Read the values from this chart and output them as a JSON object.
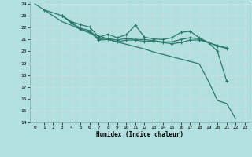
{
  "xlabel": "Humidex (Indice chaleur)",
  "bg_color": "#b2e0e0",
  "grid_color": "#d0e8e8",
  "line_color": "#2a7a6a",
  "xlim": [
    -0.5,
    23.5
  ],
  "ylim": [
    14,
    24.2
  ],
  "xticks": [
    0,
    1,
    2,
    3,
    4,
    5,
    6,
    7,
    8,
    9,
    10,
    11,
    12,
    13,
    14,
    15,
    16,
    17,
    18,
    19,
    20,
    21,
    22,
    23
  ],
  "yticks": [
    14,
    15,
    16,
    17,
    18,
    19,
    20,
    21,
    22,
    23,
    24
  ],
  "s1_x": [
    0,
    1,
    2,
    3,
    4,
    5,
    6,
    7,
    8,
    9,
    10,
    11,
    12,
    13,
    14,
    15,
    16,
    17,
    18,
    19,
    20,
    21,
    22
  ],
  "s1_y": [
    24.0,
    23.5,
    23.0,
    22.5,
    22.2,
    21.85,
    21.55,
    21.3,
    21.05,
    20.8,
    20.6,
    20.4,
    20.2,
    19.95,
    19.75,
    19.55,
    19.35,
    19.15,
    18.95,
    17.5,
    15.85,
    15.6,
    14.3
  ],
  "s2_x": [
    1,
    3,
    4,
    5,
    6,
    7,
    8,
    9,
    10,
    11,
    12,
    13,
    14,
    15,
    16,
    17,
    18,
    19,
    20,
    21
  ],
  "s2_y": [
    23.5,
    23.0,
    22.5,
    22.25,
    22.05,
    21.2,
    21.45,
    21.15,
    21.4,
    22.2,
    21.2,
    21.05,
    21.0,
    21.15,
    21.6,
    21.7,
    21.15,
    20.75,
    20.0,
    17.5
  ],
  "s3_x": [
    3,
    4,
    5,
    6,
    7,
    8,
    9,
    10,
    11,
    12,
    13,
    14,
    15,
    16,
    17,
    18,
    19,
    20,
    21
  ],
  "s3_y": [
    23.0,
    22.4,
    21.95,
    21.75,
    21.05,
    21.1,
    20.95,
    21.1,
    21.0,
    21.0,
    20.9,
    20.8,
    20.8,
    21.0,
    21.15,
    21.05,
    20.75,
    20.5,
    20.3
  ],
  "s4_x": [
    3,
    4,
    5,
    6,
    7,
    8,
    9,
    10,
    11,
    12,
    13,
    14,
    15,
    16,
    17,
    18,
    19,
    20,
    21
  ],
  "s4_y": [
    23.0,
    22.4,
    21.85,
    21.65,
    20.95,
    21.0,
    20.8,
    20.95,
    20.95,
    20.85,
    20.85,
    20.75,
    20.65,
    20.75,
    20.95,
    20.95,
    20.75,
    20.45,
    20.25
  ]
}
